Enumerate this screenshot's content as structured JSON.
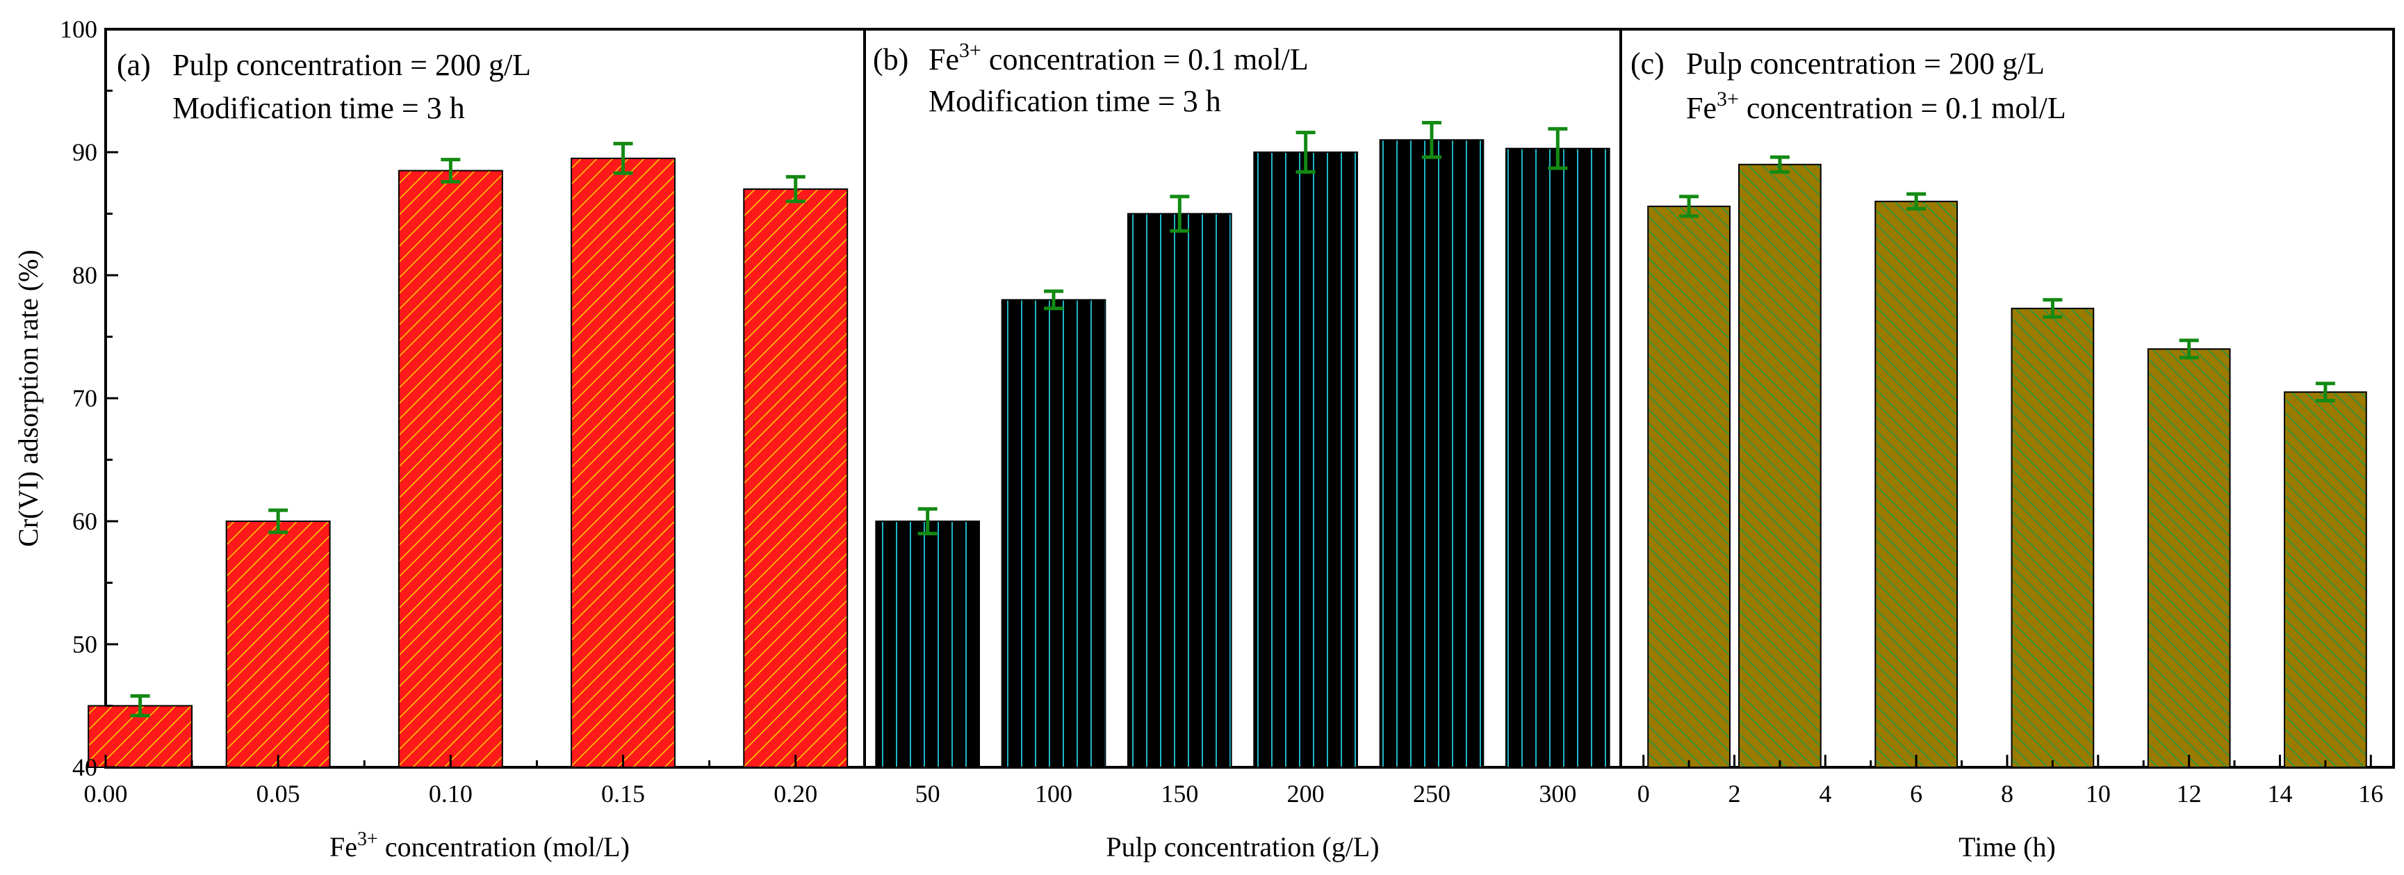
{
  "y_axis": {
    "label": "Cr(VI) adsorption rate (%)",
    "range": [
      40,
      100
    ],
    "ticks": [
      "40",
      "50",
      "60",
      "70",
      "80",
      "90",
      "100"
    ]
  },
  "panels": [
    {
      "tag": "(a)",
      "line1": "Pulp concentration = 200 g/L",
      "line2": "Modification time = 3 h",
      "xlabel_prefix": "Fe",
      "xlabel_sup": "3+",
      "xlabel_suffix": " concentration (mol/L)",
      "color": "#ff1a1a",
      "hatch_color": "#ffd400"
    },
    {
      "tag": "(b)",
      "line1_prefix": "Fe",
      "line1_sup": "3+",
      "line1_suffix": " concentration = 0.1 mol/L",
      "line2": "Modification time = 3 h",
      "xlabel": "Pulp concentration (g/L)",
      "color": "#000000",
      "hatch_color": "#1fb6c9"
    },
    {
      "tag": "(c)",
      "line1": "Pulp concentration = 200 g/L",
      "line2_prefix": "Fe",
      "line2_sup": "3+",
      "line2_suffix": " concentration = 0.1 mol/L",
      "xlabel": "Time (h)",
      "color": "#9a7a00",
      "hatch_color": "#1a9c4a"
    }
  ],
  "error_bar_color": "#138a13",
  "chart_data": [
    {
      "type": "bar",
      "title": "(a)",
      "xlabel": "Fe3+ concentration (mol/L)",
      "ylabel": "Cr(VI) adsorption rate (%)",
      "ylim": [
        40,
        100
      ],
      "xlim": [
        0.0,
        0.22
      ],
      "x_ticks": [
        "0.00",
        "0.05",
        "0.10",
        "0.15",
        "0.20"
      ],
      "x_tick_values": [
        0.0,
        0.05,
        0.1,
        0.15,
        0.2
      ],
      "x": [
        0.01,
        0.05,
        0.1,
        0.15,
        0.2
      ],
      "values": [
        45.0,
        60.0,
        88.5,
        89.5,
        87.0
      ],
      "errors": [
        0.8,
        0.9,
        0.9,
        1.2,
        1.0
      ],
      "bar_width": 0.03
    },
    {
      "type": "bar",
      "title": "(b)",
      "xlabel": "Pulp concentration (g/L)",
      "ylabel": "Cr(VI) adsorption rate (%)",
      "ylim": [
        40,
        100
      ],
      "categories": [
        "50",
        "100",
        "150",
        "200",
        "250",
        "300"
      ],
      "values": [
        60.0,
        78.0,
        85.0,
        90.0,
        91.0,
        90.3
      ],
      "errors": [
        1.0,
        0.7,
        1.4,
        1.6,
        1.4,
        1.6
      ]
    },
    {
      "type": "bar",
      "title": "(c)",
      "xlabel": "Time (h)",
      "ylabel": "Cr(VI) adsorption rate (%)",
      "ylim": [
        40,
        100
      ],
      "xlim": [
        -0.5,
        16.5
      ],
      "x_ticks": [
        "0",
        "2",
        "4",
        "6",
        "8",
        "10",
        "12",
        "14",
        "16"
      ],
      "x_tick_values": [
        0,
        2,
        4,
        6,
        8,
        10,
        12,
        14,
        16
      ],
      "x": [
        1,
        3,
        6,
        9,
        12,
        15
      ],
      "values": [
        85.6,
        89.0,
        86.0,
        77.3,
        74.0,
        70.5
      ],
      "errors": [
        0.8,
        0.6,
        0.6,
        0.7,
        0.7,
        0.7
      ],
      "bar_width": 1.8
    }
  ]
}
